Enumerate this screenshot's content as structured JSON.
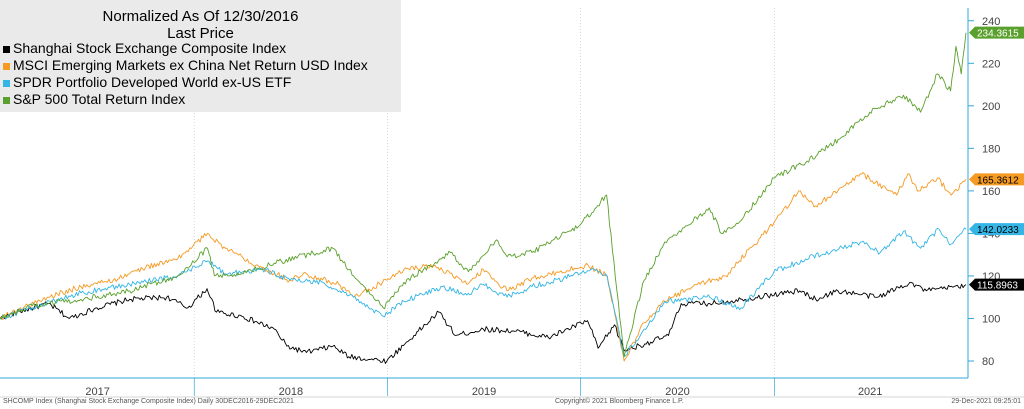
{
  "chart_data": {
    "type": "line",
    "title": "Normalized As Of 12/30/2016",
    "subtitle": "Last Price",
    "x_labels": [
      "2017",
      "2018",
      "2019",
      "2020",
      "2021"
    ],
    "x_range": [
      "2016-12-30",
      "2021-12-29"
    ],
    "ylim": [
      72,
      246
    ],
    "yticks": [
      80,
      100,
      120,
      140,
      160,
      180,
      200,
      220,
      240
    ],
    "grid": false,
    "legend_position": "top-left",
    "series": [
      {
        "name": "Shanghai Stock Exchange Composite Index",
        "color": "#000000",
        "last_label": "115.8963",
        "points": [
          [
            "2016-12-30",
            100
          ],
          [
            "2017-02-01",
            103
          ],
          [
            "2017-04-01",
            107
          ],
          [
            "2017-05-10",
            100
          ],
          [
            "2017-07-01",
            105
          ],
          [
            "2017-09-01",
            109
          ],
          [
            "2017-11-10",
            110
          ],
          [
            "2017-12-20",
            105
          ],
          [
            "2018-01-25",
            114
          ],
          [
            "2018-02-12",
            103
          ],
          [
            "2018-04-01",
            101
          ],
          [
            "2018-06-01",
            95
          ],
          [
            "2018-06-25",
            87
          ],
          [
            "2018-08-01",
            84
          ],
          [
            "2018-09-20",
            87
          ],
          [
            "2018-10-20",
            82
          ],
          [
            "2018-12-31",
            80
          ],
          [
            "2019-02-20",
            92
          ],
          [
            "2019-04-08",
            103
          ],
          [
            "2019-05-10",
            92
          ],
          [
            "2019-07-01",
            95
          ],
          [
            "2019-09-01",
            94
          ],
          [
            "2019-11-01",
            91
          ],
          [
            "2020-01-14",
            99
          ],
          [
            "2020-02-03",
            86
          ],
          [
            "2020-03-05",
            97
          ],
          [
            "2020-03-23",
            85
          ],
          [
            "2020-05-01",
            88
          ],
          [
            "2020-06-15",
            92
          ],
          [
            "2020-07-09",
            107
          ],
          [
            "2020-09-01",
            107
          ],
          [
            "2020-11-01",
            109
          ],
          [
            "2021-02-18",
            113
          ],
          [
            "2021-03-20",
            109
          ],
          [
            "2021-05-01",
            113
          ],
          [
            "2021-07-15",
            110
          ],
          [
            "2021-09-14",
            117
          ],
          [
            "2021-10-15",
            113
          ],
          [
            "2021-11-15",
            114
          ],
          [
            "2021-12-29",
            115.9
          ]
        ]
      },
      {
        "name": "MSCI Emerging Markets ex China Net Return USD Index",
        "color": "#f59a23",
        "last_label": "165.3612",
        "points": [
          [
            "2016-12-30",
            100
          ],
          [
            "2017-02-01",
            104
          ],
          [
            "2017-04-01",
            110
          ],
          [
            "2017-06-01",
            115
          ],
          [
            "2017-08-01",
            118
          ],
          [
            "2017-10-01",
            124
          ],
          [
            "2017-12-01",
            128
          ],
          [
            "2018-01-26",
            140
          ],
          [
            "2018-03-01",
            133
          ],
          [
            "2018-05-01",
            125
          ],
          [
            "2018-06-30",
            118
          ],
          [
            "2018-08-01",
            121
          ],
          [
            "2018-10-01",
            116
          ],
          [
            "2018-10-29",
            110
          ],
          [
            "2018-12-31",
            118
          ],
          [
            "2019-02-01",
            123
          ],
          [
            "2019-04-01",
            125
          ],
          [
            "2019-05-31",
            116
          ],
          [
            "2019-07-01",
            123
          ],
          [
            "2019-08-15",
            113
          ],
          [
            "2019-10-01",
            119
          ],
          [
            "2020-01-15",
            125
          ],
          [
            "2020-02-20",
            120
          ],
          [
            "2020-03-23",
            80
          ],
          [
            "2020-04-30",
            98
          ],
          [
            "2020-06-08",
            108
          ],
          [
            "2020-07-31",
            115
          ],
          [
            "2020-10-01",
            120
          ],
          [
            "2020-12-31",
            145
          ],
          [
            "2021-02-16",
            160
          ],
          [
            "2021-03-20",
            153
          ],
          [
            "2021-05-01",
            160
          ],
          [
            "2021-06-15",
            168
          ],
          [
            "2021-08-20",
            158
          ],
          [
            "2021-09-10",
            168
          ],
          [
            "2021-10-01",
            160
          ],
          [
            "2021-11-05",
            166
          ],
          [
            "2021-12-01",
            158
          ],
          [
            "2021-12-29",
            165.4
          ]
        ]
      },
      {
        "name": "SPDR Portfolio Developed World ex-US ETF",
        "color": "#33b5e5",
        "last_label": "142.0233",
        "points": [
          [
            "2016-12-30",
            100
          ],
          [
            "2017-03-01",
            105
          ],
          [
            "2017-06-01",
            112
          ],
          [
            "2017-09-01",
            116
          ],
          [
            "2017-12-01",
            120
          ],
          [
            "2018-01-26",
            127
          ],
          [
            "2018-03-01",
            121
          ],
          [
            "2018-05-15",
            123
          ],
          [
            "2018-07-01",
            118
          ],
          [
            "2018-09-01",
            117
          ],
          [
            "2018-10-29",
            110
          ],
          [
            "2018-12-24",
            101
          ],
          [
            "2019-02-01",
            108
          ],
          [
            "2019-04-15",
            115
          ],
          [
            "2019-05-31",
            111
          ],
          [
            "2019-07-01",
            116
          ],
          [
            "2019-08-15",
            110
          ],
          [
            "2019-10-01",
            115
          ],
          [
            "2019-12-31",
            121
          ],
          [
            "2020-01-20",
            123
          ],
          [
            "2020-02-20",
            120
          ],
          [
            "2020-03-23",
            82
          ],
          [
            "2020-04-30",
            95
          ],
          [
            "2020-06-08",
            108
          ],
          [
            "2020-09-01",
            110
          ],
          [
            "2020-10-30",
            105
          ],
          [
            "2020-12-31",
            122
          ],
          [
            "2021-03-01",
            128
          ],
          [
            "2021-06-15",
            136
          ],
          [
            "2021-07-20",
            131
          ],
          [
            "2021-09-02",
            141
          ],
          [
            "2021-10-04",
            133
          ],
          [
            "2021-11-08",
            142
          ],
          [
            "2021-12-01",
            135
          ],
          [
            "2021-12-29",
            142
          ]
        ]
      },
      {
        "name": "S&P 500 Total Return Index",
        "color": "#5aa02c",
        "last_label": "234.3615",
        "points": [
          [
            "2016-12-30",
            100
          ],
          [
            "2017-03-01",
            106
          ],
          [
            "2017-06-01",
            109
          ],
          [
            "2017-09-01",
            113
          ],
          [
            "2017-12-01",
            120
          ],
          [
            "2018-01-26",
            133
          ],
          [
            "2018-02-08",
            120
          ],
          [
            "2018-04-01",
            121
          ],
          [
            "2018-06-01",
            126
          ],
          [
            "2018-09-20",
            133
          ],
          [
            "2018-10-29",
            120
          ],
          [
            "2018-12-24",
            105
          ],
          [
            "2019-02-01",
            117
          ],
          [
            "2019-04-30",
            131
          ],
          [
            "2019-06-03",
            122
          ],
          [
            "2019-07-26",
            137
          ],
          [
            "2019-08-15",
            129
          ],
          [
            "2019-10-01",
            131
          ],
          [
            "2019-12-31",
            144
          ],
          [
            "2020-02-19",
            158
          ],
          [
            "2020-03-23",
            82
          ],
          [
            "2020-04-30",
            118
          ],
          [
            "2020-06-08",
            136
          ],
          [
            "2020-08-31",
            152
          ],
          [
            "2020-09-23",
            140
          ],
          [
            "2020-10-30",
            146
          ],
          [
            "2020-12-31",
            166
          ],
          [
            "2021-03-04",
            174
          ],
          [
            "2021-05-07",
            185
          ],
          [
            "2021-06-30",
            197
          ],
          [
            "2021-09-02",
            205
          ],
          [
            "2021-10-04",
            197
          ],
          [
            "2021-11-05",
            215
          ],
          [
            "2021-11-30",
            207
          ],
          [
            "2021-12-10",
            228
          ],
          [
            "2021-12-20",
            215
          ],
          [
            "2021-12-29",
            234.4
          ]
        ]
      }
    ]
  },
  "legend": {
    "title": "Normalized As Of 12/30/2016",
    "subtitle": "Last Price",
    "items": [
      {
        "label": "Shanghai Stock Exchange Composite Index",
        "color": "#000000"
      },
      {
        "label": "MSCI Emerging Markets ex China Net Return USD Index",
        "color": "#f59a23"
      },
      {
        "label": "SPDR Portfolio Developed World ex-US ETF",
        "color": "#33b5e5"
      },
      {
        "label": "S&P 500 Total Return Index",
        "color": "#5aa02c"
      }
    ]
  },
  "footer": {
    "left": "SHCOMP Index (Shanghai Stock Exchange Composite Index)  Daily 30DEC2016-29DEC2021",
    "center": "Copyright© 2021 Bloomberg Finance L.P.",
    "right": "29-Dec-2021 09:25:01"
  },
  "colors": {
    "axis": "#33a7d8",
    "label_text": "#444444"
  }
}
